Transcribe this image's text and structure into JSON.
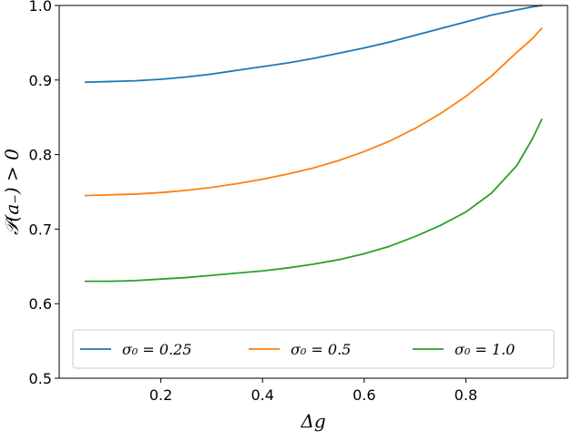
{
  "chart_data": {
    "type": "line",
    "title": "",
    "xlabel": "Δg",
    "ylabel": "𝒫(a₋) > 0",
    "xlim": [
      0.0,
      1.0
    ],
    "ylim": [
      0.5,
      1.0
    ],
    "xticks": [
      0.2,
      0.4,
      0.6,
      0.8
    ],
    "xtick_labels": [
      "0.2",
      "0.4",
      "0.6",
      "0.8"
    ],
    "yticks": [
      0.5,
      0.6,
      0.7,
      0.8,
      0.9,
      1.0
    ],
    "ytick_labels": [
      "0.5",
      "0.6",
      "0.7",
      "0.8",
      "0.9",
      "1.0"
    ],
    "grid": false,
    "legend_position": "bottom",
    "x": [
      0.05,
      0.1,
      0.15,
      0.2,
      0.25,
      0.3,
      0.35,
      0.4,
      0.45,
      0.5,
      0.55,
      0.6,
      0.65,
      0.7,
      0.75,
      0.8,
      0.85,
      0.9,
      0.93,
      0.95
    ],
    "series": [
      {
        "name": "σ₀ = 0.25",
        "color": "#1f77b4",
        "values": [
          0.897,
          0.898,
          0.899,
          0.901,
          0.904,
          0.908,
          0.913,
          0.918,
          0.923,
          0.929,
          0.936,
          0.943,
          0.951,
          0.96,
          0.969,
          0.978,
          0.987,
          0.994,
          0.998,
          1.0
        ]
      },
      {
        "name": "σ₀ = 0.5",
        "color": "#ff7f0e",
        "values": [
          0.745,
          0.746,
          0.747,
          0.749,
          0.752,
          0.756,
          0.761,
          0.767,
          0.774,
          0.782,
          0.792,
          0.804,
          0.818,
          0.835,
          0.855,
          0.878,
          0.905,
          0.937,
          0.955,
          0.97
        ]
      },
      {
        "name": "σ₀ = 1.0",
        "color": "#2ca02c",
        "values": [
          0.63,
          0.63,
          0.631,
          0.633,
          0.635,
          0.638,
          0.641,
          0.644,
          0.648,
          0.653,
          0.659,
          0.667,
          0.677,
          0.69,
          0.705,
          0.723,
          0.748,
          0.785,
          0.82,
          0.848
        ]
      }
    ]
  }
}
